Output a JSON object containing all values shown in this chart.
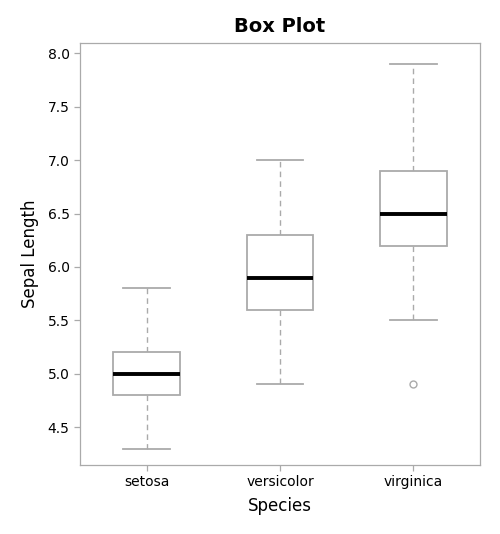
{
  "title": "Box Plot",
  "xlabel": "Species",
  "ylabel": "Sepal Length",
  "categories": [
    "setosa",
    "versicolor",
    "virginica"
  ],
  "boxes": [
    {
      "q1": 4.8,
      "median": 5.0,
      "q3": 5.2,
      "whisker_low": 4.3,
      "whisker_high": 5.8,
      "outliers": []
    },
    {
      "q1": 5.6,
      "median": 5.9,
      "q3": 6.3,
      "whisker_low": 4.9,
      "whisker_high": 7.0,
      "outliers": []
    },
    {
      "q1": 6.2,
      "median": 6.5,
      "q3": 6.9,
      "whisker_low": 5.5,
      "whisker_high": 7.9,
      "outliers": [
        4.9
      ]
    }
  ],
  "ylim": [
    4.15,
    8.1
  ],
  "yticks": [
    4.5,
    5.0,
    5.5,
    6.0,
    6.5,
    7.0,
    7.5,
    8.0
  ],
  "box_color": "#ffffff",
  "box_edge_color": "#aaaaaa",
  "median_color": "#000000",
  "whisker_color": "#aaaaaa",
  "cap_color": "#aaaaaa",
  "outlier_color": "#aaaaaa",
  "spine_color": "#aaaaaa",
  "background_color": "#ffffff",
  "title_fontsize": 14,
  "label_fontsize": 12,
  "tick_fontsize": 10,
  "box_width": 0.5,
  "cap_ratio": 0.7
}
